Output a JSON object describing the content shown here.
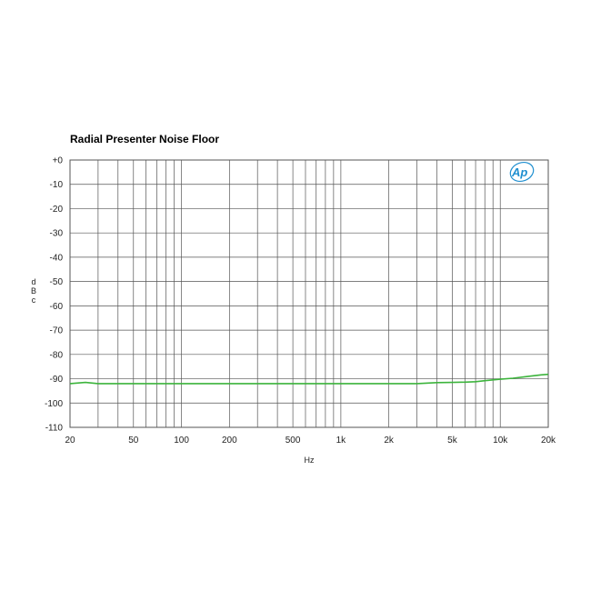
{
  "chart_data": {
    "type": "line",
    "title": "Radial Presenter Noise Floor",
    "xlabel": "Hz",
    "ylabel": "dBc",
    "x_scale": "log",
    "xlim": [
      20,
      20000
    ],
    "ylim": [
      -110,
      0
    ],
    "grid": true,
    "x_ticks": [
      20,
      50,
      100,
      200,
      500,
      1000,
      2000,
      5000,
      10000,
      20000
    ],
    "x_tick_labels": [
      "20",
      "50",
      "100",
      "200",
      "500",
      "1k",
      "2k",
      "5k",
      "10k",
      "20k"
    ],
    "y_ticks": [
      0,
      -10,
      -20,
      -30,
      -40,
      -50,
      -60,
      -70,
      -80,
      -90,
      -100,
      -110
    ],
    "y_tick_labels": [
      "+0",
      "-10",
      "-20",
      "-30",
      "-40",
      "-50",
      "-60",
      "-70",
      "-80",
      "-90",
      "-100",
      "-110"
    ],
    "series": [
      {
        "color": "#3cb43c",
        "x": [
          20,
          25,
          30,
          40,
          60,
          100,
          200,
          500,
          1000,
          2000,
          3000,
          4000,
          5000,
          6000,
          7000,
          8000,
          10000,
          12000,
          15000,
          18000,
          20000
        ],
        "y": [
          -92.0,
          -91.5,
          -92.0,
          -92.0,
          -92.0,
          -92.0,
          -92.0,
          -92.0,
          -92.0,
          -92.0,
          -92.0,
          -91.6,
          -91.5,
          -91.4,
          -91.2,
          -90.8,
          -90.2,
          -89.8,
          -89.0,
          -88.4,
          -88.2
        ]
      }
    ]
  },
  "logo": {
    "text": "Ap"
  }
}
